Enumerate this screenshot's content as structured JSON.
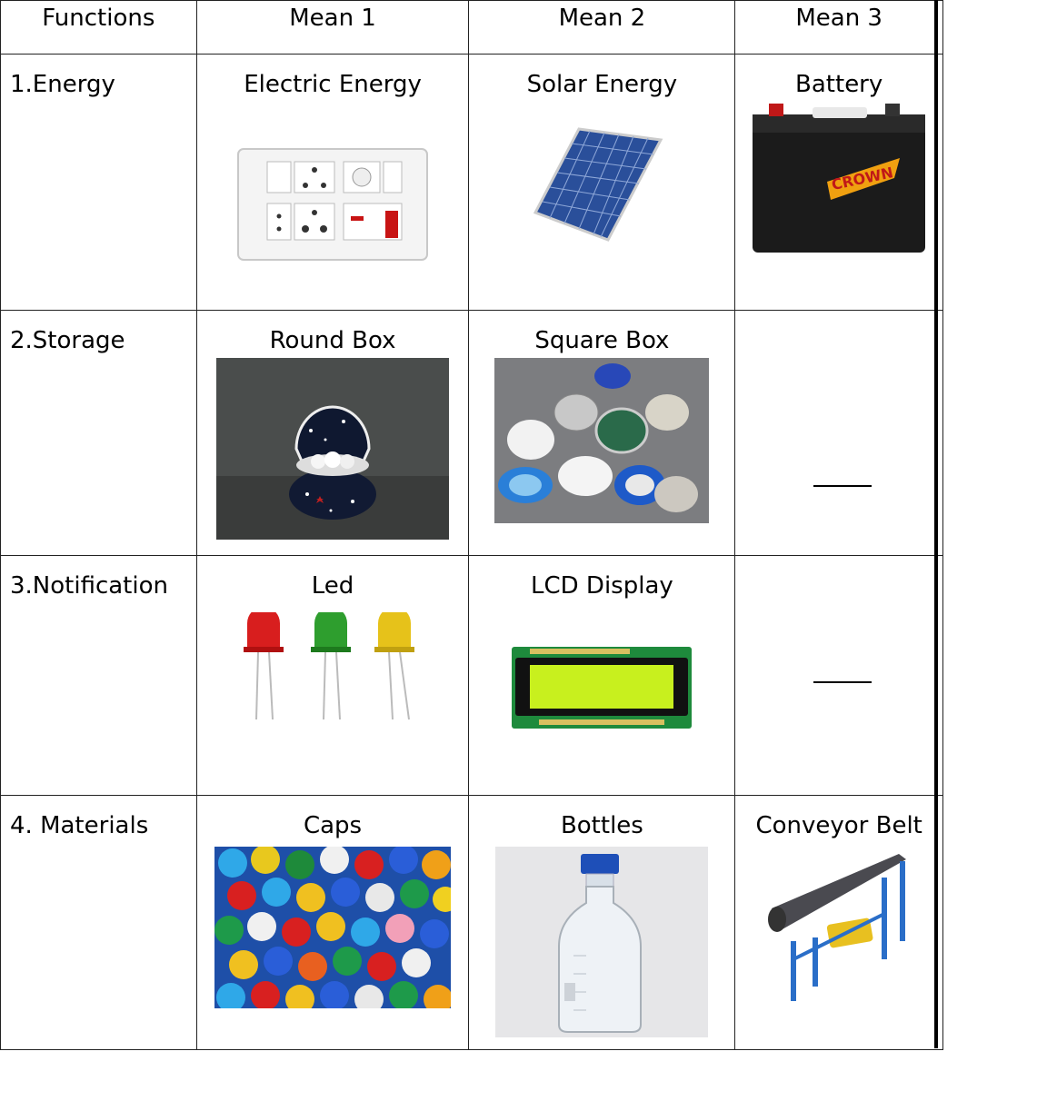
{
  "table": {
    "headers": [
      "Functions",
      "Mean 1",
      "Mean 2",
      "Mean 3"
    ],
    "rows": [
      {
        "function": "1.Energy",
        "means": [
          "Electric Energy",
          "Solar Energy",
          "Battery"
        ]
      },
      {
        "function": "2.Storage",
        "means": [
          "Round Box",
          "Square Box",
          "___"
        ]
      },
      {
        "function": "3.Notification",
        "means": [
          "Led",
          "LCD Display",
          "___"
        ]
      },
      {
        "function": "4. Materials",
        "means": [
          "Caps",
          "Bottles",
          "Conveyor Belt"
        ]
      }
    ]
  },
  "icons": {
    "electric": "switch-socket-board-icon",
    "solar": "solar-panel-icon",
    "battery": "car-battery-icon",
    "round_box": "round-jewelry-box-icon",
    "square_box": "box-of-bottle-caps-icon",
    "led": "three-leds-icon",
    "lcd": "lcd-display-module-icon",
    "caps": "plastic-caps-pile-icon",
    "bottle": "lab-bottle-icon",
    "conveyor": "conveyor-belt-icon"
  },
  "battery_brand": "CROWN",
  "colors": {
    "border": "#222222",
    "led_red": "#d81e1e",
    "led_green": "#2e9e2e",
    "led_yellow": "#e6c21a",
    "lcd_screen": "#c8f01e",
    "pcb": "#1e8a3c"
  }
}
